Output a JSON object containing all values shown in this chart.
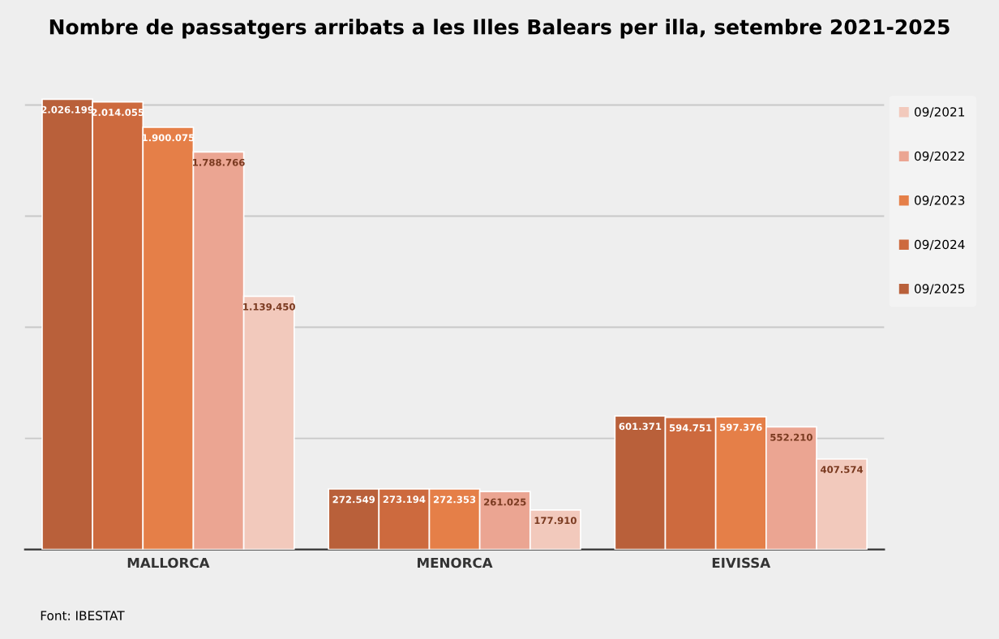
{
  "chart_data": {
    "type": "bar",
    "title": "Nombre de passatgers arribats a les Illes Balears per illa, setembre 2021-2025",
    "categories": [
      "MALLORCA",
      "MENORCA",
      "EIVISSA"
    ],
    "series": [
      {
        "name": "09/2025",
        "color": "#b9603a",
        "values": [
          2026199,
          272549,
          601371
        ],
        "value_labels": [
          "2.026.199",
          "272.549",
          "601.371"
        ]
      },
      {
        "name": "09/2024",
        "color": "#cd6a3e",
        "values": [
          2014055,
          273194,
          594751
        ],
        "value_labels": [
          "2.014.055",
          "273.194",
          "594.751"
        ]
      },
      {
        "name": "09/2023",
        "color": "#e57f48",
        "values": [
          1900075,
          272353,
          597376
        ],
        "value_labels": [
          "1.900.075",
          "272.353",
          "597.376"
        ]
      },
      {
        "name": "09/2022",
        "color": "#eba592",
        "values": [
          1788766,
          261025,
          552210
        ],
        "value_labels": [
          "1.788.766",
          "261.025",
          "552.210"
        ]
      },
      {
        "name": "09/2021",
        "color": "#f2c9bc",
        "values": [
          1139450,
          177910,
          407574
        ],
        "value_labels": [
          "1.139.450",
          "177.910",
          "407.574"
        ]
      }
    ],
    "yticks": [
      {
        "value": 0,
        "label": null
      },
      {
        "value": 500000,
        "label": null
      },
      {
        "value": 1000000,
        "label": null
      },
      {
        "value": 1500000,
        "label": null
      },
      {
        "value": 2000000,
        "label": null
      }
    ],
    "tick_labels": "x",
    "grid": "y",
    "legend": "right",
    "annotations": [
      "Font: IBESTAT"
    ]
  }
}
